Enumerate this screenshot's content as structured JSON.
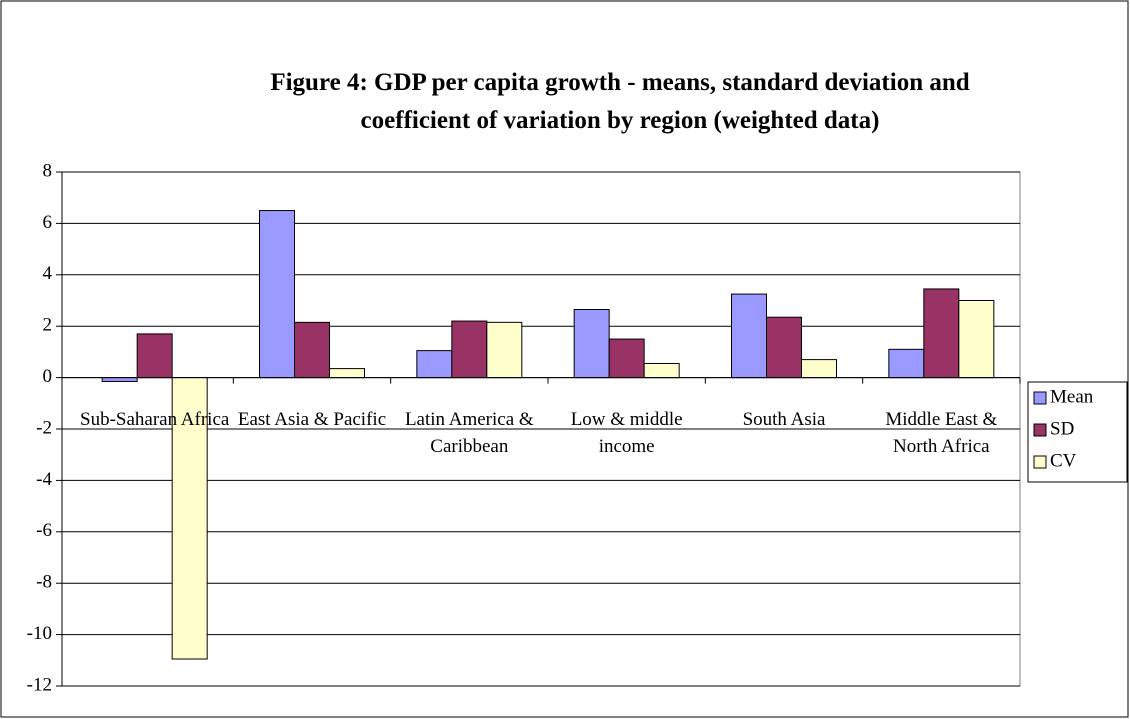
{
  "chart_data": {
    "type": "bar",
    "title": "Figure 4: GDP per capita growth  -  means, standard deviation and coefficient of variation by region (weighted data)",
    "categories": [
      "Sub-Saharan Africa",
      "East Asia & Pacific",
      "Latin America & Caribbean",
      "Low & middle income",
      "South Asia",
      "Middle East & North Africa"
    ],
    "series": [
      {
        "name": "Mean",
        "color": "#9999ff",
        "values": [
          -0.15,
          6.5,
          1.05,
          2.65,
          3.25,
          1.1
        ]
      },
      {
        "name": "SD",
        "color": "#993366",
        "values": [
          1.7,
          2.15,
          2.2,
          1.5,
          2.35,
          3.45
        ]
      },
      {
        "name": "CV",
        "color": "#ffffcc",
        "values": [
          -10.95,
          0.35,
          2.15,
          0.55,
          0.7,
          3.0
        ]
      }
    ],
    "ylim": [
      -12,
      8
    ],
    "yticks": [
      -12,
      -10,
      -8,
      -6,
      -4,
      -2,
      0,
      2,
      4,
      6,
      8
    ],
    "grid": true,
    "legend": "right"
  }
}
